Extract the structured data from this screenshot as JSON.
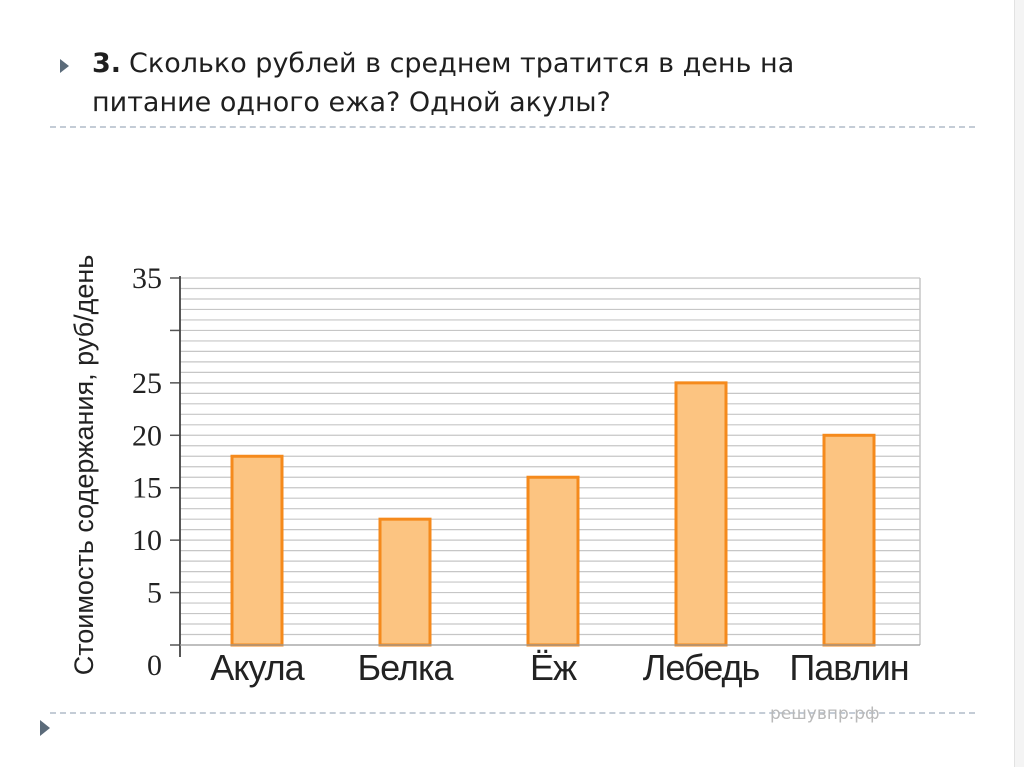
{
  "question": {
    "number": "3.",
    "text_line1": "Сколько рублей в среднем тратится в день на",
    "text_line2": "питание одного ежа? Одной акулы?"
  },
  "watermark": "решувпр.рф",
  "colors": {
    "bar_fill": "#fcc481",
    "bar_stroke": "#f58a1c",
    "grid": "#c6c6c6",
    "text": "#222222",
    "bullet": "#5b6b7a"
  },
  "icons": [
    "bullet-arrow-icon"
  ],
  "chart_data": {
    "type": "bar",
    "categories": [
      "Акула",
      "Белка",
      "Ёж",
      "Лебедь",
      "Павлин"
    ],
    "values": [
      18,
      12,
      16,
      25,
      20
    ],
    "ylabel": "Стоимость содержания, руб/день",
    "xlabel": "",
    "ylim": [
      0,
      35
    ],
    "yticks": [
      0,
      5,
      10,
      15,
      20,
      25,
      30,
      35
    ],
    "ytick_labels": [
      "0",
      "5",
      "10",
      "15",
      "20",
      "25",
      "",
      "35"
    ],
    "minor_step": 1,
    "grid": true
  }
}
